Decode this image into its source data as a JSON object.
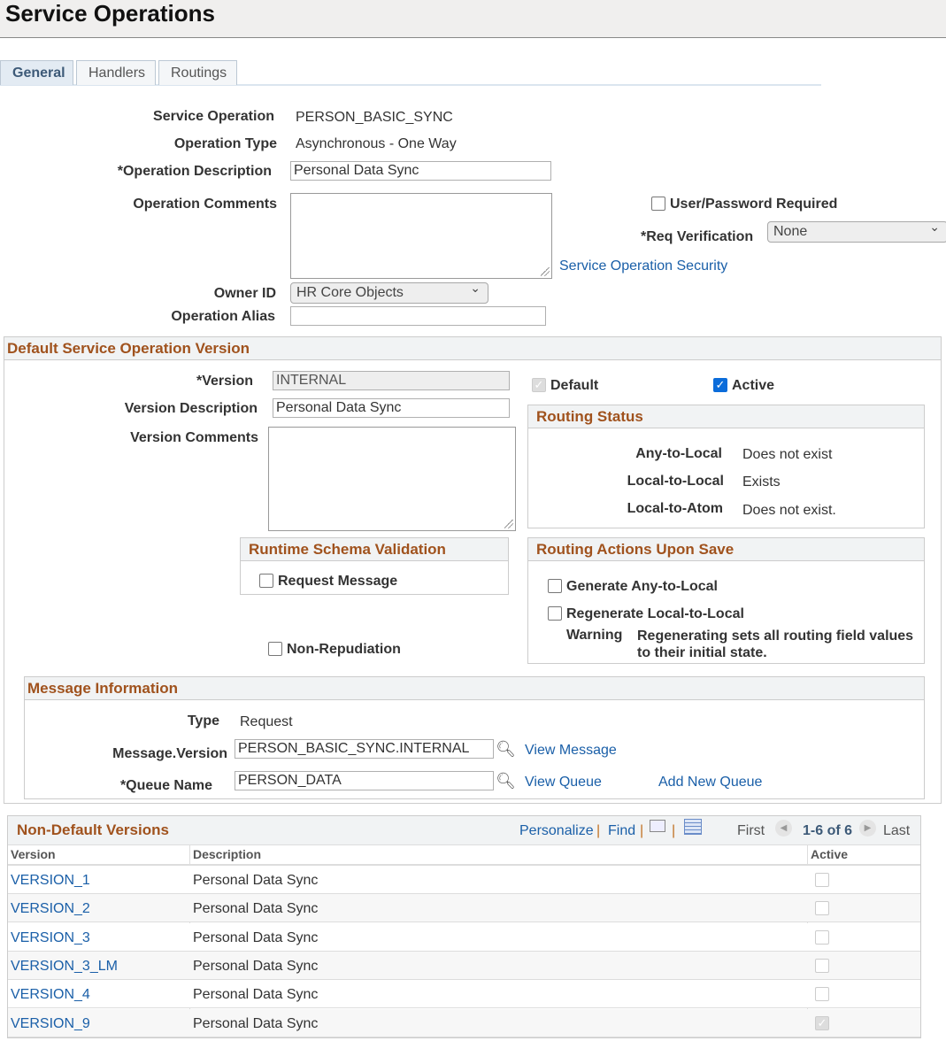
{
  "page": {
    "title": "Service Operations"
  },
  "tabs": [
    {
      "label": "General",
      "active": true
    },
    {
      "label": "Handlers"
    },
    {
      "label": "Routings"
    }
  ],
  "form": {
    "service_operation_label": "Service Operation",
    "service_operation": "PERSON_BASIC_SYNC",
    "operation_type_label": "Operation Type",
    "operation_type": "Asynchronous - One Way",
    "operation_description_label": "*Operation Description",
    "operation_description": "Personal Data Sync",
    "operation_comments_label": "Operation Comments",
    "user_password_label": "User/Password Required",
    "user_password_checked": false,
    "req_verification_label": "*Req Verification",
    "req_verification": "None",
    "security_link": "Service Operation Security",
    "owner_id_label": "Owner ID",
    "owner_id": "HR Core Objects",
    "operation_alias_label": "Operation Alias",
    "operation_alias": ""
  },
  "version": {
    "section_title": "Default Service Operation Version",
    "version_label": "*Version",
    "version": "INTERNAL",
    "description_label": "Version Description",
    "description": "Personal Data Sync",
    "comments_label": "Version Comments",
    "default_label": "Default",
    "default_checked": true,
    "active_label": "Active",
    "active_checked": true,
    "routing_status": {
      "title": "Routing Status",
      "items": [
        {
          "label": "Any-to-Local",
          "value": "Does not exist"
        },
        {
          "label": "Local-to-Local",
          "value": "Exists"
        },
        {
          "label": "Local-to-Atom",
          "value": "Does not exist."
        }
      ]
    },
    "schema": {
      "title": "Runtime Schema Validation",
      "request_label": "Request Message"
    },
    "non_repudiation_label": "Non-Repudiation",
    "routing_actions": {
      "title": "Routing Actions Upon Save",
      "generate_label": "Generate Any-to-Local",
      "regenerate_label": "Regenerate Local-to-Local",
      "warning_label": "Warning",
      "warning_text_1": "Regenerating sets all routing field values",
      "warning_text_2": "to their initial state."
    },
    "message": {
      "title": "Message Information",
      "type_label": "Type",
      "type": "Request",
      "msg_version_label": "Message.Version",
      "msg_version": "PERSON_BASIC_SYNC.INTERNAL",
      "view_message": "View Message",
      "queue_label": "*Queue Name",
      "queue": "PERSON_DATA",
      "view_queue": "View Queue",
      "add_queue": "Add New Queue"
    }
  },
  "grid": {
    "title": "Non-Default Versions",
    "personalize": "Personalize",
    "find": "Find",
    "sep": "|",
    "first": "First",
    "range": "1-6 of 6",
    "last": "Last",
    "columns": [
      "Version",
      "Description",
      "Active"
    ],
    "rows": [
      {
        "version": "VERSION_1",
        "description": "Personal Data Sync",
        "active": false
      },
      {
        "version": "VERSION_2",
        "description": "Personal Data Sync",
        "active": false
      },
      {
        "version": "VERSION_3",
        "description": "Personal Data Sync",
        "active": false
      },
      {
        "version": "VERSION_3_LM",
        "description": "Personal Data Sync",
        "active": false
      },
      {
        "version": "VERSION_4",
        "description": "Personal Data Sync",
        "active": false
      },
      {
        "version": "VERSION_9",
        "description": "Personal Data Sync",
        "active": true
      }
    ]
  }
}
